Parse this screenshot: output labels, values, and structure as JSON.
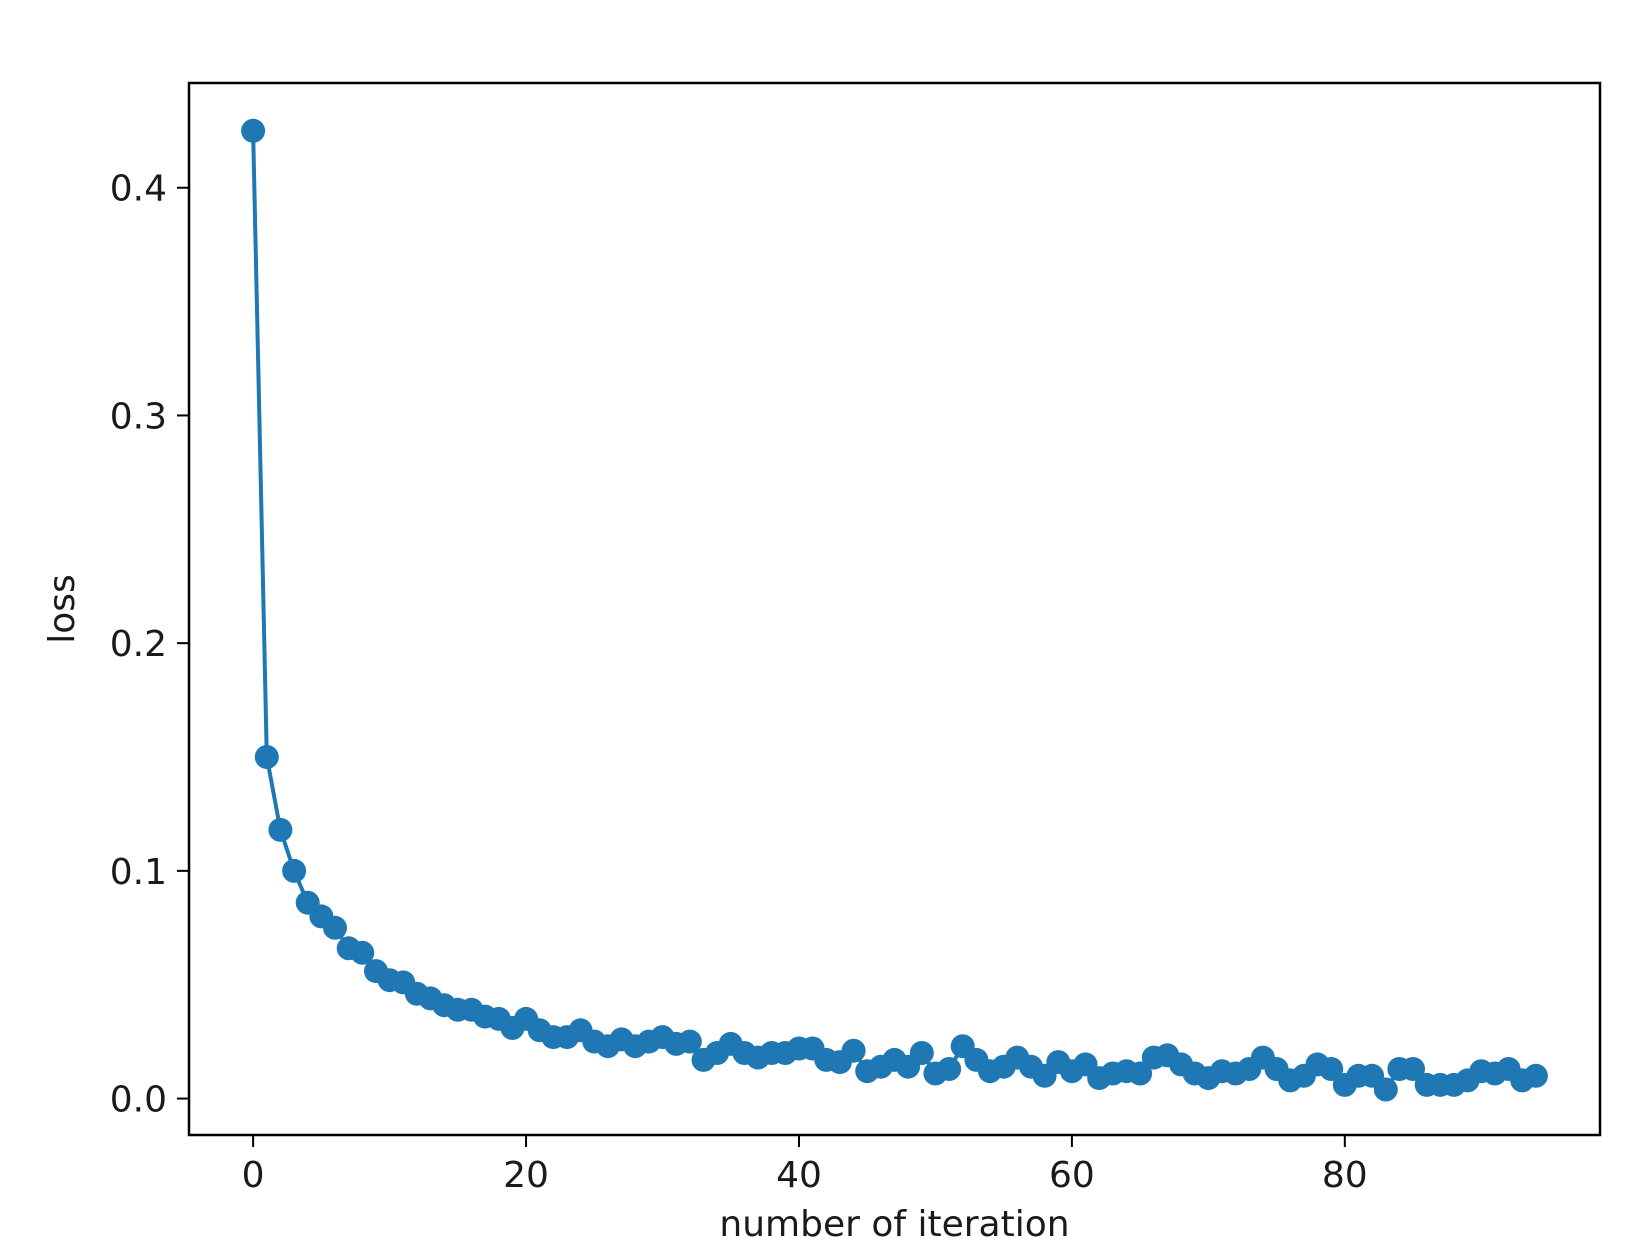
{
  "chart_data": {
    "type": "line",
    "xlabel": "number of iteration",
    "ylabel": "loss",
    "xlim": [
      -4.7,
      98.7
    ],
    "ylim": [
      -0.016,
      0.446
    ],
    "xticks": [
      0,
      20,
      40,
      60,
      80
    ],
    "yticks": [
      0.0,
      0.1,
      0.2,
      0.3,
      0.4
    ],
    "xtick_labels": [
      "0",
      "20",
      "40",
      "60",
      "80"
    ],
    "ytick_labels": [
      "0.0",
      "0.1",
      "0.2",
      "0.3",
      "0.4"
    ],
    "grid": false,
    "legend": "none",
    "color": "#1f77b4",
    "marker": "circle",
    "series": [
      {
        "x": [
          0,
          1,
          2,
          3,
          4,
          5,
          6,
          7,
          8,
          9,
          10,
          11,
          12,
          13,
          14,
          15,
          16,
          17,
          18,
          19,
          20,
          21,
          22,
          23,
          24,
          25,
          26,
          27,
          28,
          29,
          30,
          31,
          32,
          33,
          34,
          35,
          36,
          37,
          38,
          39,
          40,
          41,
          42,
          43,
          44,
          45,
          46,
          47,
          48,
          49,
          50,
          51,
          52,
          53,
          54,
          55,
          56,
          57,
          58,
          59,
          60,
          61,
          62,
          63,
          64,
          65,
          66,
          67,
          68,
          69,
          70,
          71,
          72,
          73,
          74,
          75,
          76,
          77,
          78,
          79,
          80,
          81,
          82,
          83,
          84,
          85,
          86,
          87,
          88,
          89,
          90,
          91,
          92,
          93,
          94
        ],
        "values": [
          0.425,
          0.15,
          0.118,
          0.1,
          0.086,
          0.08,
          0.075,
          0.066,
          0.064,
          0.056,
          0.052,
          0.051,
          0.046,
          0.044,
          0.041,
          0.039,
          0.039,
          0.036,
          0.035,
          0.031,
          0.035,
          0.03,
          0.027,
          0.027,
          0.03,
          0.025,
          0.023,
          0.026,
          0.023,
          0.025,
          0.027,
          0.024,
          0.025,
          0.017,
          0.02,
          0.024,
          0.02,
          0.018,
          0.02,
          0.02,
          0.022,
          0.022,
          0.017,
          0.016,
          0.021,
          0.012,
          0.014,
          0.017,
          0.014,
          0.02,
          0.011,
          0.013,
          0.023,
          0.017,
          0.012,
          0.014,
          0.018,
          0.014,
          0.01,
          0.016,
          0.012,
          0.015,
          0.009,
          0.011,
          0.012,
          0.011,
          0.018,
          0.019,
          0.015,
          0.011,
          0.009,
          0.012,
          0.011,
          0.013,
          0.018,
          0.013,
          0.008,
          0.01,
          0.015,
          0.013,
          0.006,
          0.01,
          0.01,
          0.004,
          0.013,
          0.013,
          0.006,
          0.006,
          0.006,
          0.008,
          0.012,
          0.011,
          0.013,
          0.008,
          0.01
        ]
      }
    ]
  }
}
